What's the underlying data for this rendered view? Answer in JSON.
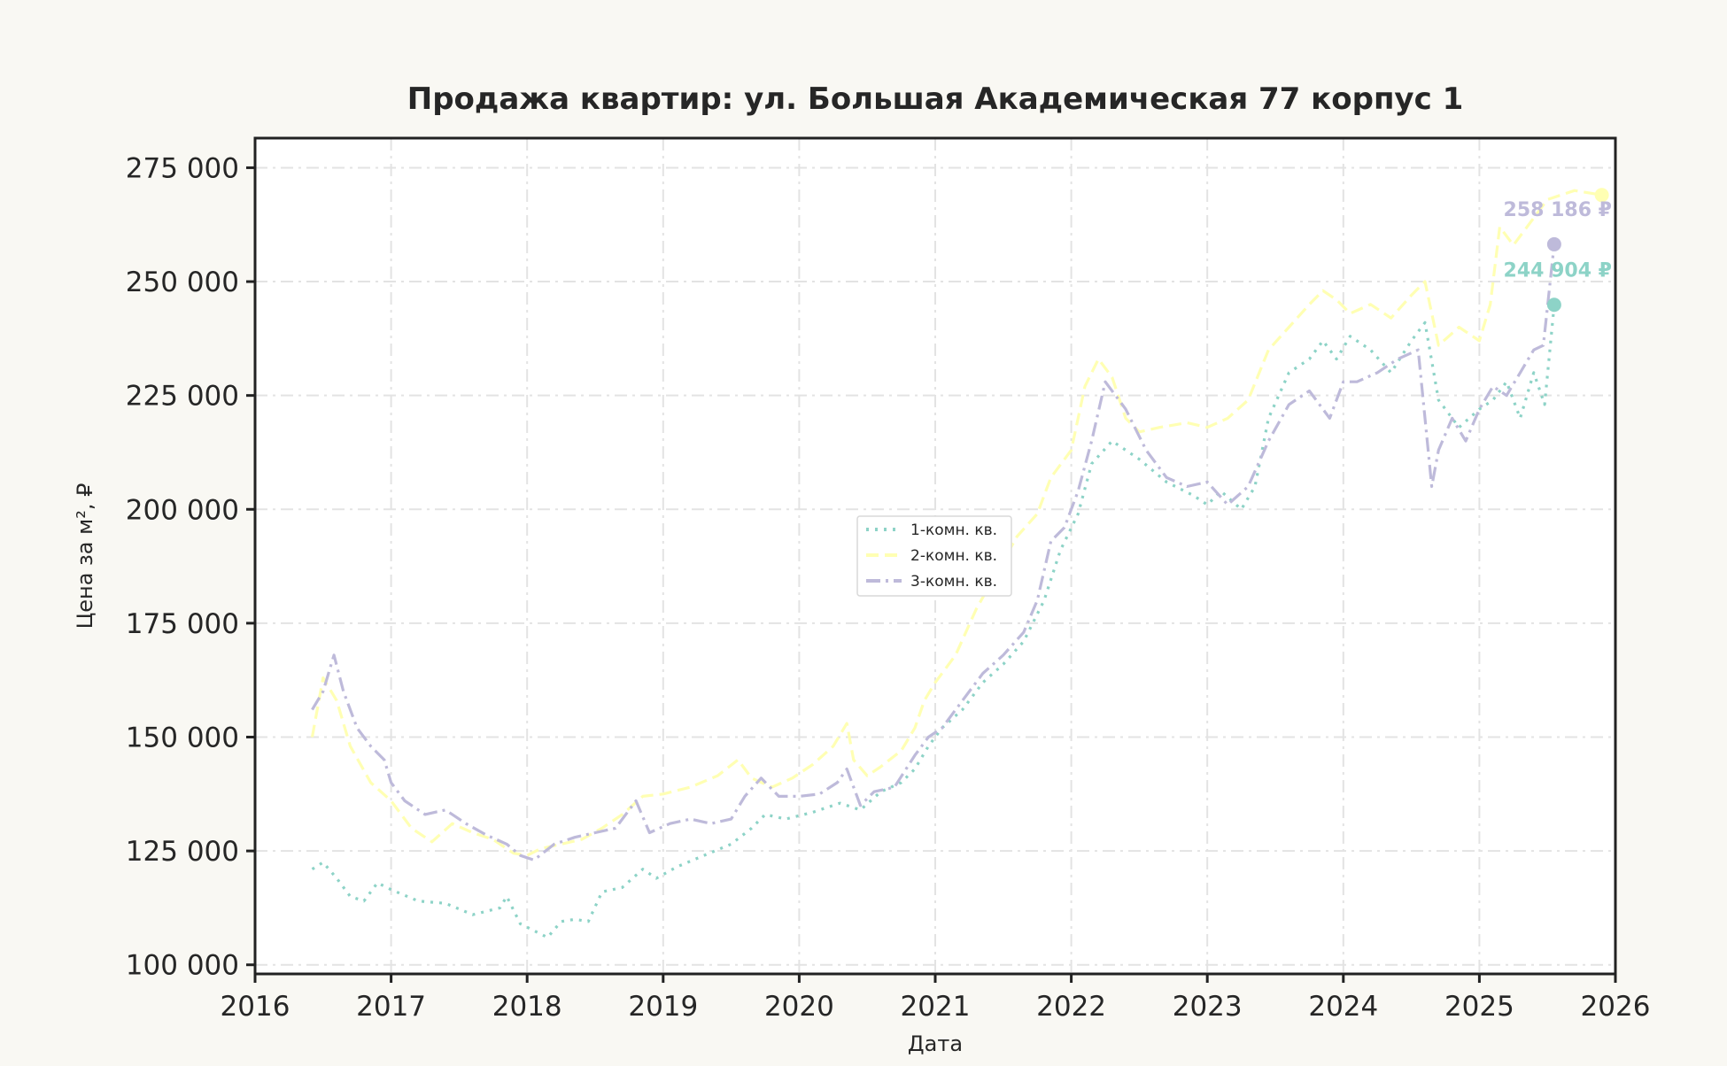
{
  "chart_data": {
    "type": "line",
    "title": "Продажа квартир: ул. Большая Академическая 77 корпус 1",
    "xlabel": "Дата",
    "ylabel": "Цена за м², ₽",
    "xlim": [
      2016.0,
      2026.0
    ],
    "ylim": [
      98000,
      281500
    ],
    "x_ticks": [
      2016,
      2017,
      2018,
      2019,
      2020,
      2021,
      2022,
      2023,
      2024,
      2025,
      2026
    ],
    "x_tick_labels": [
      "2016",
      "2017",
      "2018",
      "2019",
      "2020",
      "2021",
      "2022",
      "2023",
      "2024",
      "2025",
      "2026"
    ],
    "y_ticks": [
      100000,
      125000,
      150000,
      175000,
      200000,
      225000,
      250000,
      275000
    ],
    "y_tick_labels": [
      "100 000",
      "125 000",
      "150 000",
      "175 000",
      "200 000",
      "225 000",
      "250 000",
      "275 000"
    ],
    "grid": true,
    "legend_position": "center",
    "colors": {
      "background": "#f9f8f3",
      "plot_background": "#ffffff",
      "axes": "#222222",
      "grid": "#e3e3e3",
      "text": "#262626"
    },
    "series": [
      {
        "name": "1-комн. кв.",
        "color": "#8dd3c7",
        "dash": "dotted",
        "x": [
          2016.42,
          2016.5,
          2016.6,
          2016.7,
          2016.8,
          2016.9,
          2017.0,
          2017.2,
          2017.4,
          2017.6,
          2017.8,
          2017.85,
          2017.95,
          2018.05,
          2018.15,
          2018.25,
          2018.35,
          2018.45,
          2018.55,
          2018.7,
          2018.85,
          2018.95,
          2019.1,
          2019.3,
          2019.5,
          2019.65,
          2019.75,
          2019.9,
          2020.1,
          2020.3,
          2020.45,
          2020.6,
          2020.75,
          2020.85,
          2020.95,
          2021.05,
          2021.2,
          2021.35,
          2021.5,
          2021.65,
          2021.8,
          2021.92,
          2022.05,
          2022.15,
          2022.3,
          2022.5,
          2022.7,
          2022.9,
          2023.0,
          2023.1,
          2023.25,
          2023.35,
          2023.45,
          2023.6,
          2023.75,
          2023.85,
          2023.95,
          2024.05,
          2024.2,
          2024.35,
          2024.5,
          2024.6,
          2024.7,
          2024.85,
          2025.0,
          2025.1,
          2025.2,
          2025.3,
          2025.4,
          2025.48,
          2025.55
        ],
        "y": [
          121000,
          122500,
          119000,
          115000,
          114000,
          118000,
          116500,
          114000,
          113500,
          111000,
          112500,
          115000,
          109000,
          107500,
          106000,
          109500,
          110000,
          109500,
          116000,
          117000,
          121000,
          119000,
          121500,
          124000,
          126500,
          130000,
          133000,
          132000,
          133500,
          135500,
          134000,
          138000,
          140000,
          143000,
          148000,
          152000,
          156000,
          162000,
          166000,
          171000,
          180000,
          191000,
          199000,
          210000,
          215000,
          211000,
          206000,
          203000,
          201000,
          204000,
          200000,
          205000,
          220000,
          230000,
          233000,
          237000,
          233000,
          238000,
          235000,
          230000,
          237000,
          241000,
          224000,
          218000,
          222000,
          224000,
          228000,
          220000,
          230000,
          223000,
          244904
        ],
        "last_label": "244 904 ₽"
      },
      {
        "name": "2-комн. кв.",
        "color": "#ffffb3",
        "dash": "dashed",
        "x": [
          2016.42,
          2016.5,
          2016.6,
          2016.7,
          2016.85,
          2017.0,
          2017.15,
          2017.3,
          2017.45,
          2017.6,
          2017.75,
          2017.9,
          2018.0,
          2018.1,
          2018.25,
          2018.4,
          2018.55,
          2018.7,
          2018.85,
          2019.0,
          2019.2,
          2019.4,
          2019.55,
          2019.65,
          2019.8,
          2019.95,
          2020.1,
          2020.25,
          2020.35,
          2020.4,
          2020.5,
          2020.6,
          2020.75,
          2020.85,
          2020.92,
          2021.0,
          2021.15,
          2021.3,
          2021.45,
          2021.6,
          2021.75,
          2021.85,
          2022.0,
          2022.1,
          2022.2,
          2022.3,
          2022.4,
          2022.5,
          2022.65,
          2022.85,
          2023.0,
          2023.15,
          2023.3,
          2023.45,
          2023.6,
          2023.75,
          2023.85,
          2023.95,
          2024.05,
          2024.2,
          2024.35,
          2024.5,
          2024.6,
          2024.7,
          2024.85,
          2025.0,
          2025.08,
          2025.15,
          2025.25,
          2025.35,
          2025.5,
          2025.7,
          2025.9
        ],
        "y": [
          150000,
          163000,
          158000,
          148000,
          140000,
          136000,
          130000,
          127000,
          131000,
          129000,
          127500,
          124500,
          124000,
          125500,
          126500,
          127500,
          130000,
          133000,
          137000,
          137500,
          139000,
          141500,
          145000,
          141000,
          139000,
          141000,
          144000,
          148000,
          153000,
          145000,
          141500,
          143500,
          147000,
          152000,
          158000,
          162000,
          168000,
          178000,
          186000,
          194000,
          199000,
          207000,
          213000,
          227000,
          233000,
          229000,
          220000,
          217000,
          218000,
          219000,
          218000,
          220000,
          224000,
          235000,
          240000,
          245000,
          248000,
          246000,
          243000,
          245000,
          242000,
          247000,
          250000,
          236000,
          240000,
          237000,
          245000,
          262000,
          258000,
          262000,
          268000,
          270000,
          269000
        ],
        "last_label": ""
      },
      {
        "name": "3-комн. кв.",
        "color": "#bebada",
        "dash": "dashdot",
        "x": [
          2016.42,
          2016.5,
          2016.58,
          2016.65,
          2016.75,
          2016.85,
          2016.95,
          2017.0,
          2017.1,
          2017.25,
          2017.4,
          2017.55,
          2017.7,
          2017.85,
          2017.95,
          2018.05,
          2018.2,
          2018.35,
          2018.5,
          2018.65,
          2018.8,
          2018.9,
          2019.05,
          2019.2,
          2019.35,
          2019.5,
          2019.6,
          2019.72,
          2019.85,
          2020.0,
          2020.15,
          2020.28,
          2020.35,
          2020.45,
          2020.55,
          2020.7,
          2020.85,
          2020.95,
          2021.05,
          2021.2,
          2021.35,
          2021.5,
          2021.65,
          2021.75,
          2021.85,
          2021.95,
          2022.05,
          2022.15,
          2022.25,
          2022.4,
          2022.55,
          2022.7,
          2022.85,
          2023.0,
          2023.15,
          2023.3,
          2023.45,
          2023.6,
          2023.75,
          2023.9,
          2024.0,
          2024.1,
          2024.25,
          2024.4,
          2024.55,
          2024.6,
          2024.65,
          2024.7,
          2024.8,
          2024.9,
          2025.0,
          2025.1,
          2025.2,
          2025.3,
          2025.4,
          2025.47,
          2025.55
        ],
        "y": [
          156000,
          160000,
          168000,
          160000,
          152000,
          148000,
          145000,
          140000,
          136000,
          133000,
          134000,
          131000,
          128500,
          126500,
          124000,
          123000,
          126500,
          128000,
          129000,
          130000,
          136000,
          129000,
          131000,
          132000,
          131000,
          132000,
          137000,
          141000,
          137000,
          137000,
          137500,
          140000,
          143000,
          135000,
          138000,
          139000,
          146000,
          150000,
          152000,
          158000,
          164000,
          168000,
          173000,
          180000,
          193000,
          196000,
          204000,
          215000,
          228000,
          222000,
          213000,
          207000,
          205000,
          206000,
          201000,
          205000,
          215000,
          223000,
          226000,
          220000,
          228000,
          228000,
          230000,
          233000,
          235000,
          220000,
          205000,
          213000,
          220000,
          215000,
          222000,
          227000,
          225000,
          230000,
          235000,
          236000,
          258186
        ],
        "last_label": "258 186 ₽"
      }
    ]
  }
}
